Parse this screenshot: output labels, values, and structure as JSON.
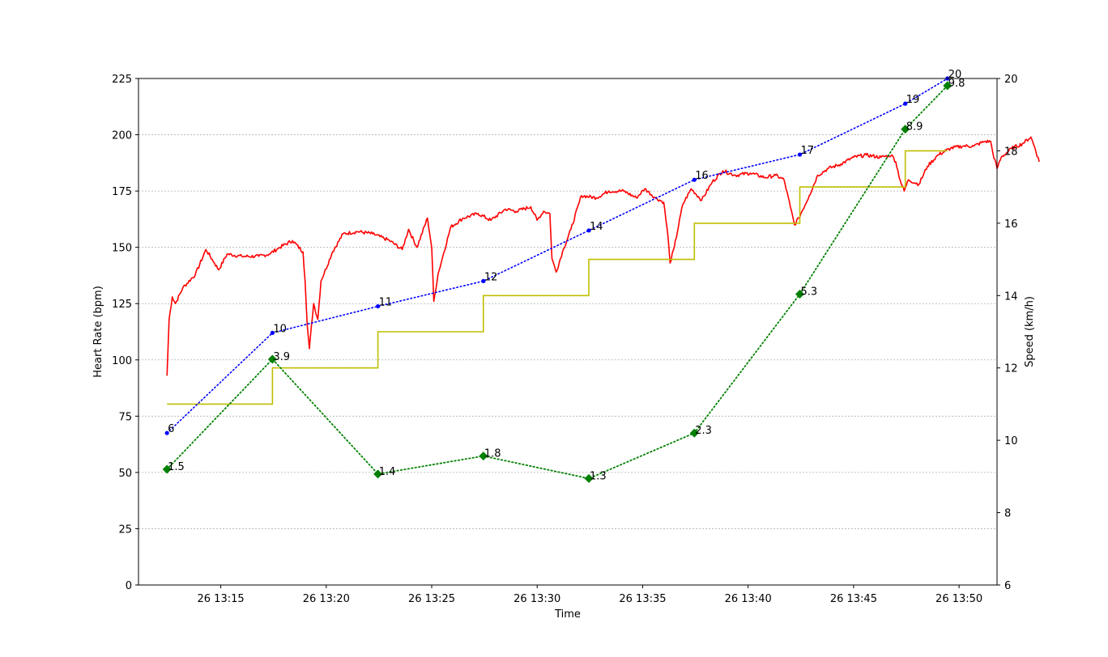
{
  "chart_data": {
    "type": "line",
    "xlabel": "Time",
    "ylabel": "Heart Rate (bpm)",
    "y2label": "Speed (km/h)",
    "xlim": [
      11.1,
      51.8
    ],
    "ylim": [
      0,
      225
    ],
    "y2lim": [
      6,
      20
    ],
    "grid": "horizontal, dotted",
    "x_ticks": [
      {
        "value": 15,
        "label": "26 13:15"
      },
      {
        "value": 20,
        "label": "26 13:20"
      },
      {
        "value": 25,
        "label": "26 13:25"
      },
      {
        "value": 30,
        "label": "26 13:30"
      },
      {
        "value": 35,
        "label": "26 13:35"
      },
      {
        "value": 40,
        "label": "26 13:40"
      },
      {
        "value": 45,
        "label": "26 13:45"
      },
      {
        "value": 50,
        "label": "26 13:50"
      }
    ],
    "y_ticks": [
      0,
      25,
      50,
      75,
      100,
      125,
      150,
      175,
      200,
      225
    ],
    "y2_ticks": [
      6,
      8,
      10,
      12,
      14,
      16,
      18,
      20
    ],
    "heart_rate_keypoints": [
      [
        12.45,
        93
      ],
      [
        12.55,
        118
      ],
      [
        12.7,
        128
      ],
      [
        12.85,
        125
      ],
      [
        13.2,
        132
      ],
      [
        13.8,
        138
      ],
      [
        14.3,
        149
      ],
      [
        14.7,
        143
      ],
      [
        14.9,
        140
      ],
      [
        15.3,
        147
      ],
      [
        16.0,
        146
      ],
      [
        16.8,
        146
      ],
      [
        17.3,
        147
      ],
      [
        17.8,
        150
      ],
      [
        18.4,
        153
      ],
      [
        18.9,
        148
      ],
      [
        19.0,
        135
      ],
      [
        19.1,
        115
      ],
      [
        19.2,
        105
      ],
      [
        19.4,
        125
      ],
      [
        19.6,
        118
      ],
      [
        19.75,
        135
      ],
      [
        20.3,
        148
      ],
      [
        20.8,
        156
      ],
      [
        21.5,
        157
      ],
      [
        22.2,
        156
      ],
      [
        23.0,
        153
      ],
      [
        23.6,
        149
      ],
      [
        23.9,
        158
      ],
      [
        24.3,
        150
      ],
      [
        24.8,
        163
      ],
      [
        25.0,
        150
      ],
      [
        25.1,
        126
      ],
      [
        25.3,
        138
      ],
      [
        25.5,
        145
      ],
      [
        25.9,
        159
      ],
      [
        26.5,
        163
      ],
      [
        27.2,
        165
      ],
      [
        27.8,
        162
      ],
      [
        28.5,
        167
      ],
      [
        29.0,
        166
      ],
      [
        29.7,
        168
      ],
      [
        30.0,
        162
      ],
      [
        30.3,
        166
      ],
      [
        30.6,
        165
      ],
      [
        30.7,
        145
      ],
      [
        30.9,
        139
      ],
      [
        31.2,
        148
      ],
      [
        31.6,
        158
      ],
      [
        32.1,
        173
      ],
      [
        32.8,
        172
      ],
      [
        33.4,
        175
      ],
      [
        34.1,
        175
      ],
      [
        34.7,
        172
      ],
      [
        35.1,
        176
      ],
      [
        35.6,
        172
      ],
      [
        36.0,
        170
      ],
      [
        36.2,
        155
      ],
      [
        36.3,
        143
      ],
      [
        36.5,
        150
      ],
      [
        36.9,
        169
      ],
      [
        37.3,
        176
      ],
      [
        37.8,
        171
      ],
      [
        38.3,
        179
      ],
      [
        38.8,
        184
      ],
      [
        39.4,
        182
      ],
      [
        40.1,
        183
      ],
      [
        40.8,
        181
      ],
      [
        41.3,
        182
      ],
      [
        41.7,
        180
      ],
      [
        42.0,
        168
      ],
      [
        42.2,
        160
      ],
      [
        42.4,
        163
      ],
      [
        42.9,
        173
      ],
      [
        43.3,
        182
      ],
      [
        43.8,
        185
      ],
      [
        44.4,
        187
      ],
      [
        45.0,
        190
      ],
      [
        45.6,
        191
      ],
      [
        46.3,
        190
      ],
      [
        46.8,
        191
      ],
      [
        47.0,
        188
      ],
      [
        47.2,
        180
      ],
      [
        47.4,
        175
      ],
      [
        47.6,
        180
      ],
      [
        48.1,
        178
      ],
      [
        48.5,
        186
      ],
      [
        49.0,
        191
      ],
      [
        49.6,
        194
      ],
      [
        50.2,
        195
      ],
      [
        50.7,
        195
      ],
      [
        51.2,
        197
      ],
      [
        51.5,
        197
      ],
      [
        51.6,
        192
      ],
      [
        51.8,
        185
      ],
      [
        52.0,
        190
      ],
      [
        52.5,
        194
      ],
      [
        53.0,
        196
      ],
      [
        53.4,
        199
      ],
      [
        53.6,
        194
      ],
      [
        53.8,
        188
      ]
    ],
    "speed_steps": [
      {
        "x_start": 12.45,
        "x_end": 17.45,
        "speed": 11
      },
      {
        "x_start": 17.45,
        "x_end": 22.45,
        "speed": 12
      },
      {
        "x_start": 22.45,
        "x_end": 27.45,
        "speed": 13
      },
      {
        "x_start": 27.45,
        "x_end": 32.45,
        "speed": 14
      },
      {
        "x_start": 32.45,
        "x_end": 37.45,
        "speed": 15
      },
      {
        "x_start": 37.45,
        "x_end": 42.45,
        "speed": 16
      },
      {
        "x_start": 42.45,
        "x_end": 47.45,
        "speed": 17
      },
      {
        "x_start": 47.45,
        "x_end": 49.45,
        "speed": 18
      }
    ],
    "blue_points": [
      {
        "x": 12.45,
        "y": 67.5,
        "label": "6"
      },
      {
        "x": 17.45,
        "y": 112,
        "label": "10"
      },
      {
        "x": 22.45,
        "y": 123.8,
        "label": "11"
      },
      {
        "x": 27.45,
        "y": 135,
        "label": "12"
      },
      {
        "x": 32.45,
        "y": 157.5,
        "label": "14"
      },
      {
        "x": 37.45,
        "y": 180,
        "label": "16"
      },
      {
        "x": 42.45,
        "y": 191.2,
        "label": "17"
      },
      {
        "x": 47.45,
        "y": 213.8,
        "label": "19"
      },
      {
        "x": 49.45,
        "y": 225,
        "label": "20"
      }
    ],
    "green_points": [
      {
        "x": 12.45,
        "y": 51.4,
        "label": "1.5"
      },
      {
        "x": 17.45,
        "y": 100.3,
        "label": "3.9"
      },
      {
        "x": 22.45,
        "y": 49.3,
        "label": "1.4"
      },
      {
        "x": 27.45,
        "y": 57.3,
        "label": "1.8"
      },
      {
        "x": 32.45,
        "y": 47.3,
        "label": "1.3"
      },
      {
        "x": 37.45,
        "y": 67.5,
        "label": "2.3"
      },
      {
        "x": 42.45,
        "y": 129.2,
        "label": "5.3"
      },
      {
        "x": 47.45,
        "y": 202.5,
        "label": "8.9"
      },
      {
        "x": 49.45,
        "y": 221.8,
        "label": "9.8"
      }
    ],
    "colors": {
      "heart_rate": "#ff0000",
      "speed": "#bfbf00",
      "blue_series": "#0000ff",
      "green_series": "#008000",
      "grid": "#b0b0b0"
    }
  }
}
